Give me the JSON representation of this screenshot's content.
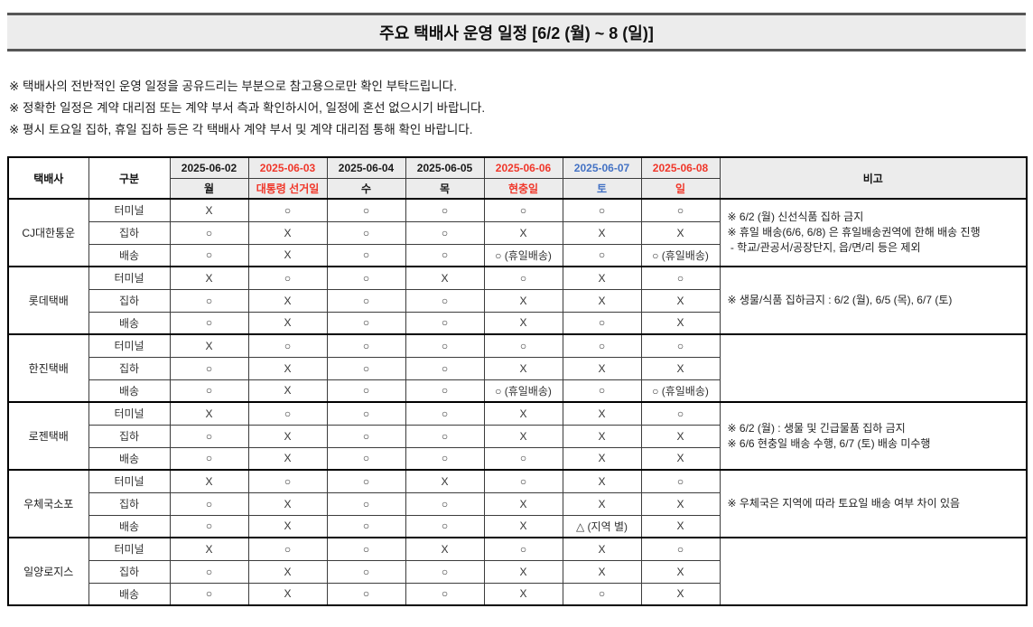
{
  "title": "주요 택배사 운영 일정 [6/2 (월) ~ 8 (일)]",
  "notices": [
    "※ 택배사의 전반적인 운영 일정을 공유드리는 부분으로 참고용으로만 확인 부탁드립니다.",
    "※ 정확한 일정은 계약 대리점 또는 계약 부서 측과 확인하시어, 일정에 혼선 없으시기 바랍니다.",
    "※ 평시 토요일 집하, 휴일 집하 등은 각 택배사 계약 부서 및 계약 대리점 통해 확인 바랍니다."
  ],
  "colors": {
    "holiday_red": "#f0372a",
    "saturday_blue": "#4472c4",
    "weekday_black": "#1a1a1a"
  },
  "table": {
    "header": {
      "carrier": "택배사",
      "category": "구분",
      "remarks": "비고"
    },
    "days": [
      {
        "date": "2025-06-02",
        "label": "월",
        "color": "#1a1a1a"
      },
      {
        "date": "2025-06-03",
        "label": "대통령 선거일",
        "color": "#f0372a"
      },
      {
        "date": "2025-06-04",
        "label": "수",
        "color": "#1a1a1a"
      },
      {
        "date": "2025-06-05",
        "label": "목",
        "color": "#1a1a1a"
      },
      {
        "date": "2025-06-06",
        "label": "현충일",
        "color": "#f0372a"
      },
      {
        "date": "2025-06-07",
        "label": "토",
        "color": "#4472c4"
      },
      {
        "date": "2025-06-08",
        "label": "일",
        "color": "#f0372a"
      }
    ],
    "row_categories": [
      "터미널",
      "집하",
      "배송"
    ],
    "companies": [
      {
        "name": "CJ대한통운",
        "rows": [
          [
            "X",
            "○",
            "○",
            "○",
            "○",
            "○",
            "○"
          ],
          [
            "○",
            "X",
            "○",
            "○",
            "X",
            "X",
            "X"
          ],
          [
            "○",
            "X",
            "○",
            "○",
            "○ (휴일배송)",
            "○",
            "○ (휴일배송)"
          ]
        ],
        "remarks": [
          "※ 6/2 (월) 신선식품 집하 금지",
          "※ 휴일 배송(6/6, 6/8) 은 휴일배송권역에 한해 배송 진행",
          " - 학교/관공서/공장단지, 읍/면/리 등은 제외"
        ]
      },
      {
        "name": "롯데택배",
        "rows": [
          [
            "X",
            "○",
            "○",
            "X",
            "○",
            "X",
            "○"
          ],
          [
            "○",
            "X",
            "○",
            "○",
            "X",
            "X",
            "X"
          ],
          [
            "○",
            "X",
            "○",
            "○",
            "X",
            "○",
            "X"
          ]
        ],
        "remarks": [
          "※ 생물/식품 집하금지 : 6/2 (월), 6/5 (목), 6/7 (토)"
        ]
      },
      {
        "name": "한진택배",
        "rows": [
          [
            "X",
            "○",
            "○",
            "○",
            "○",
            "○",
            "○"
          ],
          [
            "○",
            "X",
            "○",
            "○",
            "X",
            "X",
            "X"
          ],
          [
            "○",
            "X",
            "○",
            "○",
            "○ (휴일배송)",
            "○",
            "○ (휴일배송)"
          ]
        ],
        "remarks": []
      },
      {
        "name": "로젠택배",
        "rows": [
          [
            "X",
            "○",
            "○",
            "○",
            "X",
            "X",
            "○"
          ],
          [
            "○",
            "X",
            "○",
            "○",
            "X",
            "X",
            "X"
          ],
          [
            "○",
            "X",
            "○",
            "○",
            "○",
            "X",
            "X"
          ]
        ],
        "remarks": [
          "※ 6/2 (월) : 생물 및 긴급물품 집하 금지",
          "※ 6/6 현충일 배송 수행, 6/7 (토) 배송 미수행"
        ]
      },
      {
        "name": "우체국소포",
        "rows": [
          [
            "X",
            "○",
            "○",
            "X",
            "○",
            "X",
            "○"
          ],
          [
            "○",
            "X",
            "○",
            "○",
            "X",
            "X",
            "X"
          ],
          [
            "○",
            "X",
            "○",
            "○",
            "X",
            "△ (지역 별)",
            "X"
          ]
        ],
        "remarks": [
          "※ 우체국은 지역에 따라 토요일 배송 여부 차이 있음"
        ]
      },
      {
        "name": "일양로지스",
        "rows": [
          [
            "X",
            "○",
            "○",
            "X",
            "○",
            "X",
            "○"
          ],
          [
            "○",
            "X",
            "○",
            "○",
            "X",
            "X",
            "X"
          ],
          [
            "○",
            "X",
            "○",
            "○",
            "X",
            "○",
            "X"
          ]
        ],
        "remarks": []
      }
    ]
  }
}
